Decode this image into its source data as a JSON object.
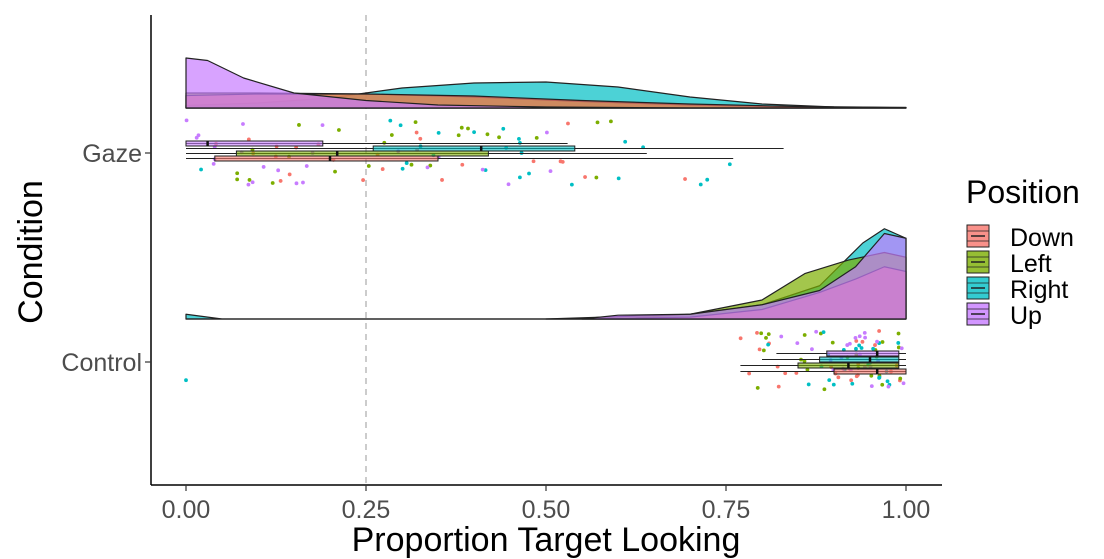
{
  "chart_data": {
    "type": "raincloud",
    "title": "",
    "xlabel": "Proportion Target Looking",
    "ylabel": "Condition",
    "xlim": [
      -0.05,
      1.05
    ],
    "x_ticks": [
      0.0,
      0.25,
      0.5,
      0.75,
      1.0
    ],
    "x_tick_labels": [
      "0.00",
      "0.25",
      "0.50",
      "0.75",
      "1.00"
    ],
    "categories": [
      "Gaze",
      "Control"
    ],
    "reference_line": 0.25,
    "grid": false,
    "legend": {
      "title": "Position",
      "placement": "right",
      "entries": [
        "Down",
        "Left",
        "Right",
        "Up"
      ]
    },
    "colors": {
      "Down": "#F8766D",
      "Left": "#7CAE00",
      "Right": "#00BFC4",
      "Up": "#C77CFF"
    },
    "series": [
      {
        "name": "Down",
        "boxes": {
          "Gaze": {
            "whisker_low": 0.0,
            "q1": 0.04,
            "median": 0.2,
            "q3": 0.35,
            "whisker_high": 0.76
          },
          "Control": {
            "whisker_low": 0.77,
            "q1": 0.9,
            "median": 0.96,
            "q3": 1.0,
            "whisker_high": 1.0
          }
        },
        "density": {
          "Gaze": [
            [
              0.0,
              0.25
            ],
            [
              0.1,
              0.28
            ],
            [
              0.25,
              0.28
            ],
            [
              0.4,
              0.24
            ],
            [
              0.55,
              0.15
            ],
            [
              0.7,
              0.08
            ],
            [
              0.85,
              0.03
            ],
            [
              1.0,
              0.01
            ]
          ],
          "Control": [
            [
              0.55,
              0.0
            ],
            [
              0.7,
              0.02
            ],
            [
              0.8,
              0.1
            ],
            [
              0.88,
              0.28
            ],
            [
              0.93,
              0.42
            ],
            [
              0.97,
              0.55
            ],
            [
              1.0,
              0.5
            ]
          ]
        }
      },
      {
        "name": "Left",
        "boxes": {
          "Gaze": {
            "whisker_low": 0.0,
            "q1": 0.07,
            "median": 0.21,
            "q3": 0.42,
            "whisker_high": 0.64
          },
          "Control": {
            "whisker_low": 0.77,
            "q1": 0.85,
            "median": 0.92,
            "q3": 0.99,
            "whisker_high": 1.0
          }
        },
        "density": {
          "Gaze": [
            [
              0.0,
              0.3
            ],
            [
              0.1,
              0.3
            ],
            [
              0.25,
              0.28
            ],
            [
              0.4,
              0.22
            ],
            [
              0.55,
              0.13
            ],
            [
              0.7,
              0.06
            ],
            [
              0.85,
              0.02
            ],
            [
              1.0,
              0.01
            ]
          ],
          "Control": [
            [
              0.5,
              0.0
            ],
            [
              0.58,
              0.02
            ],
            [
              0.7,
              0.05
            ],
            [
              0.8,
              0.2
            ],
            [
              0.86,
              0.48
            ],
            [
              0.92,
              0.62
            ],
            [
              0.97,
              0.7
            ],
            [
              1.0,
              0.65
            ]
          ]
        }
      },
      {
        "name": "Right",
        "boxes": {
          "Gaze": {
            "whisker_low": 0.0,
            "q1": 0.26,
            "median": 0.41,
            "q3": 0.54,
            "whisker_high": 0.83
          },
          "Control": {
            "whisker_low": 0.8,
            "q1": 0.88,
            "median": 0.95,
            "q3": 0.99,
            "whisker_high": 1.0
          }
        },
        "density": {
          "Gaze": [
            [
              0.0,
              0.05
            ],
            [
              0.1,
              0.1
            ],
            [
              0.2,
              0.2
            ],
            [
              0.3,
              0.4
            ],
            [
              0.4,
              0.5
            ],
            [
              0.5,
              0.52
            ],
            [
              0.6,
              0.42
            ],
            [
              0.7,
              0.22
            ],
            [
              0.8,
              0.08
            ],
            [
              0.9,
              0.02
            ],
            [
              1.0,
              0.0
            ]
          ],
          "Control": [
            [
              0.0,
              0.05
            ],
            [
              0.05,
              0.0
            ],
            [
              0.6,
              0.0
            ],
            [
              0.7,
              0.05
            ],
            [
              0.8,
              0.15
            ],
            [
              0.88,
              0.35
            ],
            [
              0.94,
              0.8
            ],
            [
              0.97,
              0.95
            ],
            [
              1.0,
              0.85
            ]
          ]
        }
      },
      {
        "name": "Up",
        "boxes": {
          "Gaze": {
            "whisker_low": 0.0,
            "q1": 0.0,
            "median": 0.03,
            "q3": 0.19,
            "whisker_high": 0.53
          },
          "Control": {
            "whisker_low": 0.82,
            "q1": 0.89,
            "median": 0.96,
            "q3": 0.99,
            "whisker_high": 1.0
          }
        },
        "density": {
          "Gaze": [
            [
              0.0,
              1.0
            ],
            [
              0.03,
              0.95
            ],
            [
              0.08,
              0.6
            ],
            [
              0.15,
              0.3
            ],
            [
              0.25,
              0.15
            ],
            [
              0.35,
              0.06
            ],
            [
              0.5,
              0.02
            ],
            [
              0.7,
              0.0
            ],
            [
              1.0,
              0.0
            ]
          ],
          "Control": [
            [
              0.0,
              0.0
            ],
            [
              0.55,
              0.0
            ],
            [
              0.6,
              0.04
            ],
            [
              0.7,
              0.05
            ],
            [
              0.8,
              0.15
            ],
            [
              0.88,
              0.3
            ],
            [
              0.93,
              0.55
            ],
            [
              0.97,
              0.9
            ],
            [
              1.0,
              0.85
            ]
          ]
        }
      }
    ]
  }
}
